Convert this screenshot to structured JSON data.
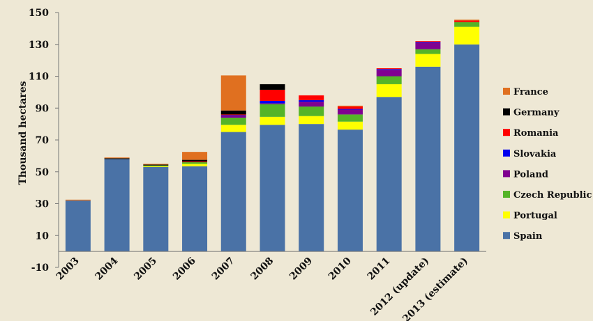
{
  "chart_data": {
    "type": "bar",
    "stacked": true,
    "categories": [
      "2003",
      "2004",
      "2005",
      "2006",
      "2007",
      "2008",
      "2009",
      "2010",
      "2011",
      "2012 (update)",
      "2013 (estimate)"
    ],
    "series": [
      {
        "name": "Spain",
        "color": "#4a72a6",
        "values": [
          32,
          58,
          53,
          53.5,
          75,
          79.5,
          80,
          76.5,
          97,
          116,
          130
        ]
      },
      {
        "name": "Portugal",
        "color": "#ffff00",
        "values": [
          0,
          0,
          0.5,
          1.5,
          4.5,
          5,
          5,
          5,
          8,
          8,
          11
        ]
      },
      {
        "name": "Czech Republic",
        "color": "#55b428",
        "values": [
          0,
          0,
          0.5,
          1,
          4.5,
          8,
          6,
          4.5,
          5,
          3,
          3
        ]
      },
      {
        "name": "Poland",
        "color": "#800090",
        "values": [
          0,
          0,
          0,
          0,
          1,
          0.5,
          3,
          3,
          4,
          4,
          0
        ]
      },
      {
        "name": "Slovakia",
        "color": "#0000ee",
        "values": [
          0,
          0,
          0,
          0,
          0.5,
          1.5,
          1,
          0.5,
          0.5,
          0.5,
          0
        ]
      },
      {
        "name": "Romania",
        "color": "#ff0000",
        "values": [
          0,
          0,
          0,
          0.5,
          0.5,
          7,
          3,
          1.5,
          0.5,
          0.5,
          1
        ]
      },
      {
        "name": "Germany",
        "color": "#000000",
        "values": [
          0,
          0.5,
          0.5,
          1,
          2.5,
          3.5,
          0,
          0,
          0,
          0,
          0
        ]
      },
      {
        "name": "France",
        "color": "#e07020",
        "values": [
          0.5,
          0.5,
          0.5,
          5,
          22,
          0,
          0,
          0.5,
          0,
          0,
          0.5
        ]
      }
    ],
    "title": "",
    "xlabel": "",
    "ylabel": "Thousand hectares",
    "ylim": [
      -10,
      150
    ],
    "yticks": [
      -10,
      10,
      30,
      50,
      70,
      90,
      110,
      130,
      150
    ],
    "grid": false,
    "legend_position": "right",
    "legend_order": [
      "France",
      "Germany",
      "Romania",
      "Slovakia",
      "Poland",
      "Czech Republic",
      "Portugal",
      "Spain"
    ]
  }
}
